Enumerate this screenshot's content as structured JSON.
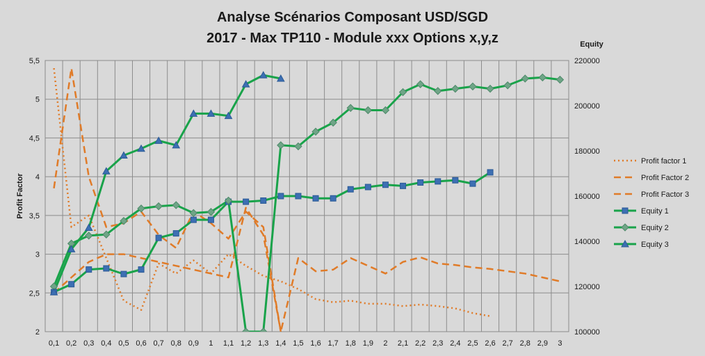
{
  "chart_data": {
    "type": "line",
    "title_line1": "Analyse Scénarios Composant USD/SGD",
    "title_line2": "2017 - Max TP110 - Module xxx Options x,y,z",
    "ylabel_left": "Profit Factor",
    "ylabel_right": "Equity",
    "grid": true,
    "legend_position": "right",
    "categories": [
      "0,1",
      "0,2",
      "0,3",
      "0,4",
      "0,5",
      "0,6",
      "0,7",
      "0,8",
      "0,9",
      "1",
      "1,1",
      "1,2",
      "1,3",
      "1,4",
      "1,5",
      "1,6",
      "1,7",
      "1,8",
      "1,9",
      "2",
      "2,1",
      "2,2",
      "2,3",
      "2,4",
      "2,5",
      "2,6",
      "2,7",
      "2,8",
      "2,9",
      "3"
    ],
    "y_left": {
      "min": 2,
      "max": 5.5,
      "ticks": [
        "2",
        "2,5",
        "3",
        "3,5",
        "4",
        "4,5",
        "5",
        "5,5"
      ]
    },
    "y_right": {
      "min": 100000,
      "max": 220000,
      "ticks": [
        "100000",
        "120000",
        "140000",
        "160000",
        "180000",
        "200000",
        "220000"
      ]
    },
    "series": [
      {
        "name": "Profit factor 1",
        "axis": "left",
        "style": "dotted",
        "color": "#e07b28",
        "values": [
          5.4,
          3.35,
          3.5,
          2.95,
          2.4,
          2.28,
          2.88,
          2.75,
          2.92,
          2.75,
          3.0,
          2.85,
          2.72,
          2.65,
          2.55,
          2.42,
          2.38,
          2.4,
          2.36,
          2.36,
          2.33,
          2.35,
          2.33,
          2.3,
          2.24,
          2.2,
          null,
          null,
          null,
          null
        ]
      },
      {
        "name": "Profit Factor 2",
        "axis": "left",
        "style": "dashed",
        "color": "#e07b28",
        "values": [
          3.85,
          5.4,
          4.0,
          3.35,
          3.4,
          3.55,
          3.25,
          3.08,
          3.55,
          3.4,
          3.2,
          3.55,
          3.35,
          2.0,
          2.95,
          2.78,
          2.8,
          2.95,
          2.85,
          2.75,
          2.9,
          2.96,
          2.88,
          2.86,
          2.83,
          2.81,
          2.78,
          2.75,
          2.7,
          2.65
        ]
      },
      {
        "name": "Profit Factor 3",
        "axis": "left",
        "style": "dashed",
        "color": "#e07b28",
        "values": [
          2.5,
          2.7,
          2.9,
          3.0,
          3.0,
          2.95,
          2.9,
          2.85,
          2.8,
          2.75,
          2.7,
          3.6,
          3.25,
          2.0,
          null,
          null,
          null,
          null,
          null,
          null,
          null,
          null,
          null,
          null,
          null,
          null,
          null,
          null,
          null,
          null
        ],
        "segments": [
          [
            0,
            10
          ],
          [
            3,
            4
          ]
        ]
      },
      {
        "name": "Equity 1",
        "axis": "right",
        "style": "solid",
        "marker": "square",
        "color": "#19a34a",
        "marker_color": "#3d6fb3",
        "values": [
          117500,
          121000,
          127500,
          128000,
          125500,
          127500,
          141500,
          143500,
          149500,
          149500,
          157500,
          157500,
          158000,
          160000,
          160000,
          159000,
          159000,
          163000,
          164000,
          165000,
          164500,
          166000,
          166500,
          167000,
          165500,
          170500,
          null,
          null,
          null,
          null
        ]
      },
      {
        "name": "Equity 2",
        "axis": "right",
        "style": "solid",
        "marker": "diamond",
        "color": "#19a34a",
        "marker_color": "#6fa587",
        "values": [
          120000,
          139000,
          142500,
          143000,
          149000,
          154500,
          155500,
          156000,
          152500,
          153000,
          158000,
          100000,
          100000,
          182500,
          182000,
          188500,
          192500,
          199000,
          198000,
          198000,
          206000,
          209500,
          206500,
          207500,
          208500,
          207500,
          209000,
          212000,
          212500,
          211500
        ]
      },
      {
        "name": "Equity 3",
        "axis": "right",
        "style": "solid",
        "marker": "triangle",
        "color": "#19a34a",
        "marker_color": "#3d6fb3",
        "values": [
          117500,
          136500,
          146000,
          171000,
          178000,
          181000,
          184500,
          182500,
          196500,
          196500,
          195500,
          209500,
          213500,
          212000,
          null,
          null,
          null,
          null,
          null,
          null,
          null,
          null,
          null,
          null,
          null,
          null,
          null,
          null,
          null,
          null
        ]
      }
    ]
  }
}
